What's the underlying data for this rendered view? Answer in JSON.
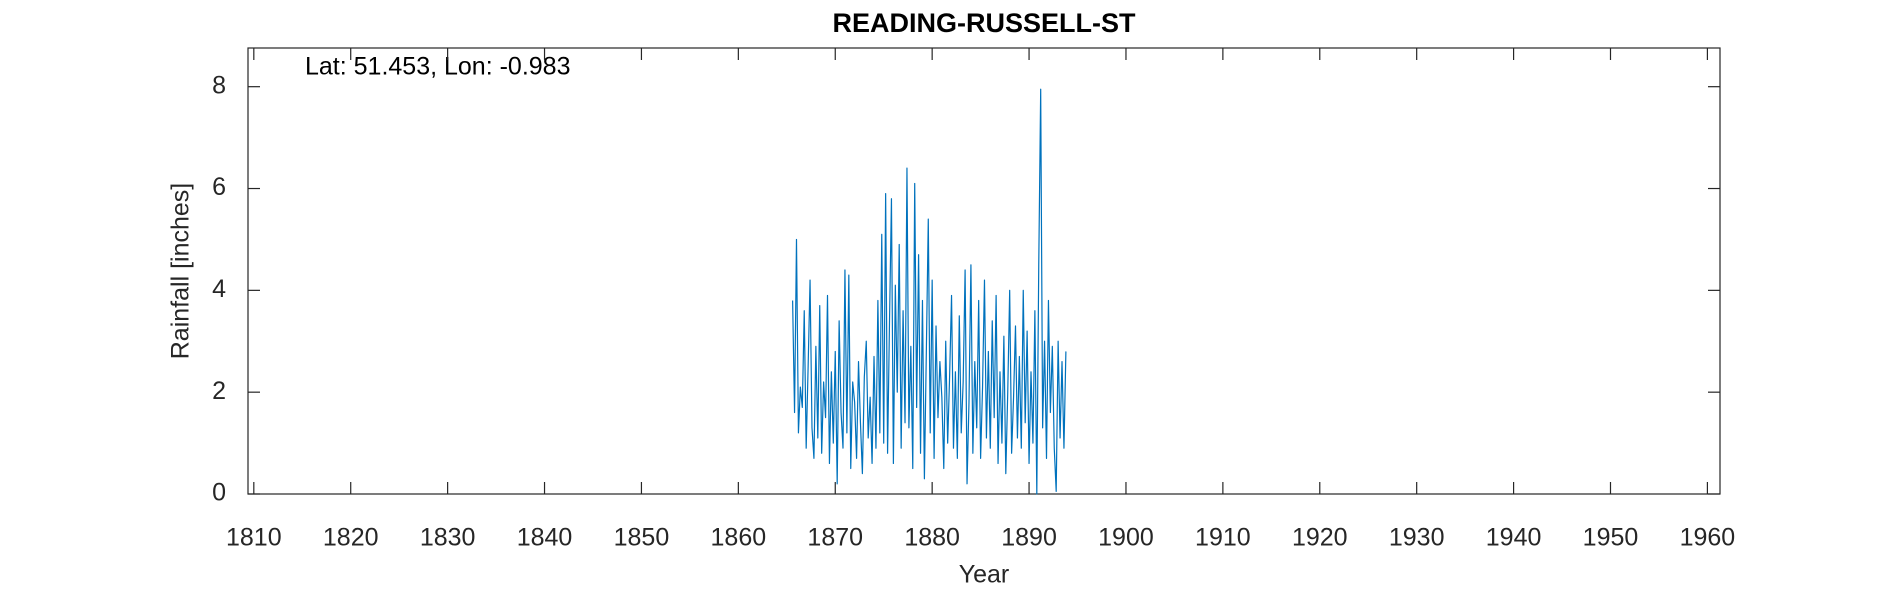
{
  "chart_data": {
    "type": "line",
    "title": "READING-RUSSELL-ST",
    "annotation": "Lat: 51.453, Lon: -0.983",
    "x_label": "Year",
    "y_label": "Rainfall [inches]",
    "color": "#0072bd",
    "grid": false,
    "xlim": [
      1809.4,
      1961.3
    ],
    "ylim": [
      0,
      8.76
    ],
    "xticks": [
      1810,
      1820,
      1830,
      1840,
      1850,
      1860,
      1870,
      1880,
      1890,
      1900,
      1910,
      1920,
      1930,
      1940,
      1950,
      1960
    ],
    "yticks": [
      0,
      2,
      4,
      6,
      8
    ],
    "x": [
      1865.6,
      1865.8,
      1866.0,
      1866.2,
      1866.4,
      1866.6,
      1866.8,
      1867.0,
      1867.2,
      1867.4,
      1867.6,
      1867.8,
      1868.0,
      1868.2,
      1868.4,
      1868.6,
      1868.8,
      1869.0,
      1869.2,
      1869.4,
      1869.6,
      1869.8,
      1870.0,
      1870.2,
      1870.4,
      1870.6,
      1870.8,
      1871.0,
      1871.2,
      1871.4,
      1871.6,
      1871.8,
      1872.0,
      1872.2,
      1872.4,
      1872.6,
      1872.8,
      1873.0,
      1873.2,
      1873.4,
      1873.6,
      1873.8,
      1874.0,
      1874.2,
      1874.4,
      1874.6,
      1874.8,
      1875.0,
      1875.2,
      1875.4,
      1875.6,
      1875.8,
      1876.0,
      1876.2,
      1876.4,
      1876.6,
      1876.8,
      1877.0,
      1877.2,
      1877.4,
      1877.6,
      1877.8,
      1878.0,
      1878.2,
      1878.4,
      1878.6,
      1878.8,
      1879.0,
      1879.2,
      1879.4,
      1879.6,
      1879.8,
      1880.0,
      1880.2,
      1880.4,
      1880.6,
      1880.8,
      1881.0,
      1881.2,
      1881.4,
      1881.6,
      1881.8,
      1882.0,
      1882.2,
      1882.4,
      1882.6,
      1882.8,
      1883.0,
      1883.2,
      1883.4,
      1883.6,
      1883.8,
      1884.0,
      1884.2,
      1884.4,
      1884.6,
      1884.8,
      1885.0,
      1885.2,
      1885.4,
      1885.6,
      1885.8,
      1886.0,
      1886.2,
      1886.4,
      1886.6,
      1886.8,
      1887.0,
      1887.2,
      1887.4,
      1887.6,
      1887.8,
      1888.0,
      1888.2,
      1888.4,
      1888.6,
      1888.8,
      1889.0,
      1889.2,
      1889.4,
      1889.6,
      1889.8,
      1890.0,
      1890.2,
      1890.4,
      1890.6,
      1890.8,
      1891.0,
      1891.2,
      1891.4,
      1891.6,
      1891.8,
      1892.0,
      1892.2,
      1892.4,
      1892.6,
      1892.8,
      1893.0,
      1893.2,
      1893.4,
      1893.6,
      1893.8
    ],
    "values": [
      3.8,
      1.6,
      5.0,
      1.2,
      2.1,
      1.7,
      3.6,
      0.9,
      2.5,
      4.2,
      1.3,
      0.7,
      2.9,
      1.1,
      3.7,
      0.8,
      2.2,
      1.5,
      3.9,
      0.6,
      2.4,
      1.0,
      2.8,
      0.2,
      3.4,
      1.6,
      0.9,
      4.4,
      1.2,
      4.3,
      0.5,
      2.2,
      1.8,
      0.7,
      2.6,
      1.4,
      0.4,
      2.3,
      3.0,
      1.1,
      1.9,
      0.6,
      2.7,
      0.9,
      3.8,
      1.2,
      5.1,
      1.0,
      5.9,
      0.8,
      3.4,
      5.8,
      0.6,
      4.1,
      2.0,
      4.9,
      0.9,
      3.6,
      1.4,
      6.4,
      1.3,
      2.9,
      0.5,
      6.1,
      1.7,
      4.7,
      0.8,
      3.8,
      0.3,
      2.8,
      5.4,
      1.2,
      4.2,
      0.7,
      3.3,
      1.5,
      2.6,
      1.9,
      0.5,
      3.0,
      1.0,
      2.3,
      3.9,
      0.9,
      2.4,
      0.7,
      3.5,
      1.2,
      2.2,
      4.4,
      0.2,
      1.8,
      4.5,
      0.8,
      2.6,
      1.3,
      3.8,
      0.7,
      2.1,
      4.2,
      1.1,
      2.8,
      0.9,
      3.4,
      1.5,
      3.9,
      0.6,
      2.4,
      1.0,
      3.1,
      0.4,
      2.0,
      4.0,
      0.8,
      1.9,
      3.3,
      1.1,
      2.7,
      0.9,
      4.0,
      1.4,
      3.2,
      0.6,
      2.4,
      1.0,
      3.6,
      0.0,
      4.5,
      7.95,
      1.3,
      3.0,
      0.7,
      3.8,
      1.6,
      2.9,
      0.9,
      0.05,
      3.0,
      1.1,
      2.6,
      0.9,
      2.8
    ]
  }
}
